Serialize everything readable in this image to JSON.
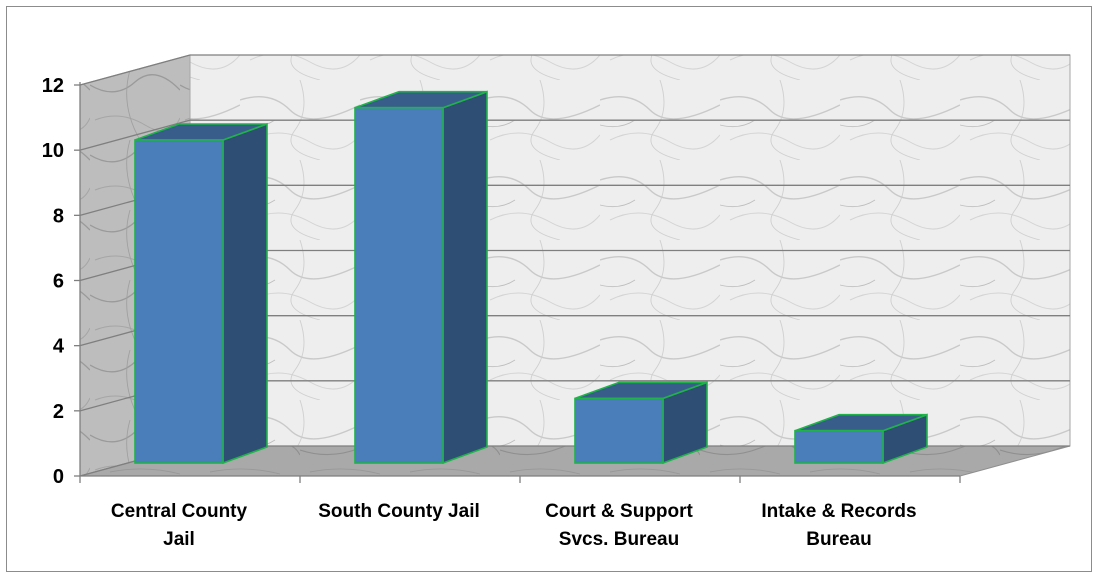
{
  "chart_data": {
    "type": "bar",
    "style": "3d-column",
    "categories": [
      [
        "Central County",
        "Jail"
      ],
      [
        "South County Jail"
      ],
      [
        "Court & Support",
        "Svcs. Bureau"
      ],
      [
        "Intake & Records",
        "Bureau"
      ]
    ],
    "values": [
      10,
      11,
      2,
      1
    ],
    "ylim": [
      0,
      12
    ],
    "yticks": [
      "0",
      "2",
      "4",
      "6",
      "8",
      "10",
      "12"
    ],
    "title": "",
    "xlabel": "",
    "ylabel": "",
    "grid": true,
    "legend": "none",
    "colors": {
      "bar_front": "#4a7ebb",
      "bar_side": "#2f4e74",
      "bar_top": "#385d8a",
      "bar_outline": "#1fb34a",
      "gridline": "#7f7f7f",
      "wall": "#e8e8e8"
    }
  }
}
